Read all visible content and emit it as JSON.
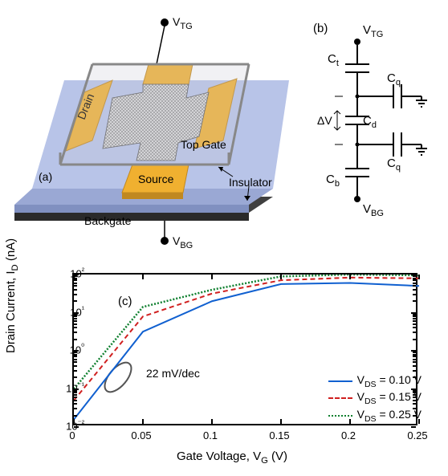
{
  "panel_a": {
    "label": "(a)",
    "top_gate_terminal": "V",
    "top_gate_sub": "TG",
    "back_gate_terminal": "V",
    "back_gate_sub": "BG",
    "labels": {
      "drain": "Drain",
      "source": "Source",
      "top_gate": "Top Gate",
      "insulator": "Insulator",
      "backgate": "Backgate"
    },
    "colors": {
      "substrate_top": "#b8c4e8",
      "substrate_side": "#9aa8d4",
      "backgate_side": "#404040",
      "contact": "#f0b030",
      "contact_side": "#c08820",
      "glass": "#d8d8d8",
      "graphene": "#666666"
    }
  },
  "panel_b": {
    "label": "(b)",
    "vtg": "V",
    "vtg_sub": "TG",
    "vbg": "V",
    "vbg_sub": "BG",
    "ct": "C",
    "ct_sub": "t",
    "cb": "C",
    "cb_sub": "b",
    "cd": "C",
    "cd_sub": "d",
    "cq1": "C",
    "cq1_sub": "q",
    "cq2": "C",
    "cq2_sub": "q",
    "dv": "ΔV"
  },
  "chart": {
    "label": "(c)",
    "xlabel_pre": "Gate Voltage, V",
    "xlabel_sub": "G",
    "xlabel_post": " (V)",
    "ylabel_pre": "Drain Current, I",
    "ylabel_sub": "D",
    "ylabel_post": " (nA)",
    "annotation": "22 mV/dec",
    "xlim": [
      0,
      0.25
    ],
    "ylim_log": [
      -2,
      2
    ],
    "x_ticks": [
      0,
      0.05,
      0.1,
      0.15,
      0.2,
      0.25
    ],
    "x_tick_labels": [
      "0",
      "0.05",
      "0.1",
      "0.15",
      "0.2",
      "0.25"
    ],
    "y_ticks": [
      -2,
      -1,
      0,
      1,
      2
    ],
    "y_tick_labels": [
      "10⁻²",
      "10⁻¹",
      "10⁰",
      "10¹",
      "10²"
    ],
    "series": [
      {
        "name": "V_DS = 0.10 V",
        "label_pre": "V",
        "label_sub": "DS",
        "label_post": " = 0.10 V",
        "color": "#1060d0",
        "dash": "none",
        "width": 2,
        "x": [
          0,
          0.05,
          0.1,
          0.15,
          0.2,
          0.25
        ],
        "y_log": [
          -1.8,
          0.5,
          1.3,
          1.75,
          1.78,
          1.7
        ]
      },
      {
        "name": "V_DS = 0.15 V",
        "label_pre": "V",
        "label_sub": "DS",
        "label_post": " = 0.15 V",
        "color": "#d02020",
        "dash": "6,4",
        "width": 2,
        "x": [
          0,
          0.05,
          0.1,
          0.15,
          0.2,
          0.25
        ],
        "y_log": [
          -1.3,
          0.9,
          1.5,
          1.85,
          1.92,
          1.9
        ]
      },
      {
        "name": "V_DS = 0.25 V",
        "label_pre": "V",
        "label_sub": "DS",
        "label_post": " = 0.25 V",
        "color": "#108030",
        "dash": "2,2",
        "width": 2.5,
        "x": [
          0,
          0.05,
          0.1,
          0.15,
          0.2,
          0.25
        ],
        "y_log": [
          -1.0,
          1.15,
          1.6,
          1.95,
          2.0,
          1.98
        ]
      }
    ]
  }
}
